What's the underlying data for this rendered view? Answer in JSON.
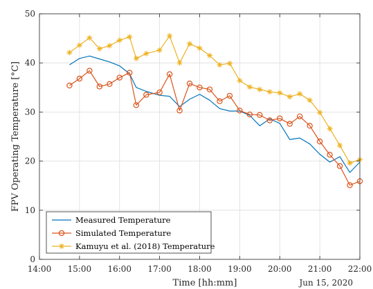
{
  "chart_data": {
    "type": "line",
    "xlabel": "Time [hh:mm]",
    "ylabel": "FPV Operating Temperature [°C]",
    "date_label": "Jun 15, 2020",
    "xlim": [
      "14:00",
      "22:00"
    ],
    "ylim": [
      0,
      50
    ],
    "x_ticks": [
      "14:00",
      "15:00",
      "16:00",
      "17:00",
      "18:00",
      "19:00",
      "20:00",
      "21:00",
      "22:00"
    ],
    "y_ticks": [
      0,
      10,
      20,
      30,
      40,
      50
    ],
    "grid": true,
    "legend_position": "bottom-left",
    "series": [
      {
        "name": "Measured Temperature",
        "color": "#0072BD",
        "marker": "none",
        "x": [
          "14:45",
          "15:00",
          "15:15",
          "15:30",
          "15:45",
          "16:00",
          "16:15",
          "16:25",
          "16:40",
          "17:00",
          "17:15",
          "17:30",
          "17:45",
          "18:00",
          "18:15",
          "18:30",
          "18:45",
          "19:00",
          "19:15",
          "19:30",
          "19:45",
          "20:00",
          "20:15",
          "20:30",
          "20:45",
          "21:00",
          "21:15",
          "21:30",
          "21:45",
          "22:00"
        ],
        "y": [
          39.6,
          40.9,
          41.4,
          40.8,
          40.2,
          39.4,
          37.8,
          35.0,
          34.2,
          33.4,
          33.2,
          31.1,
          32.6,
          33.6,
          32.4,
          30.7,
          30.2,
          30.2,
          29.3,
          27.2,
          28.6,
          27.7,
          24.4,
          24.7,
          23.5,
          21.4,
          19.8,
          20.9,
          17.7,
          19.8
        ]
      },
      {
        "name": "Simulated Temperature",
        "color": "#D95319",
        "marker": "circle",
        "x": [
          "14:45",
          "15:00",
          "15:15",
          "15:30",
          "15:45",
          "16:00",
          "16:15",
          "16:25",
          "16:40",
          "17:00",
          "17:15",
          "17:30",
          "17:45",
          "18:00",
          "18:15",
          "18:30",
          "18:45",
          "19:00",
          "19:15",
          "19:30",
          "19:45",
          "20:00",
          "20:15",
          "20:30",
          "20:45",
          "21:00",
          "21:15",
          "21:30",
          "21:45",
          "22:00"
        ],
        "y": [
          35.4,
          36.8,
          38.4,
          35.2,
          35.7,
          37.0,
          38.0,
          31.4,
          33.5,
          34.0,
          37.7,
          30.3,
          35.8,
          35.0,
          34.6,
          32.2,
          33.3,
          30.3,
          29.5,
          29.4,
          28.3,
          28.7,
          27.6,
          29.1,
          27.2,
          24.0,
          21.3,
          19.0,
          15.1,
          15.9
        ]
      },
      {
        "name": "Kamuyu et al. (2018) Temperature",
        "color": "#EDB120",
        "marker": "asterisk",
        "x": [
          "14:45",
          "15:00",
          "15:15",
          "15:30",
          "15:45",
          "16:00",
          "16:15",
          "16:25",
          "16:40",
          "17:00",
          "17:15",
          "17:30",
          "17:45",
          "18:00",
          "18:15",
          "18:30",
          "18:45",
          "19:00",
          "19:15",
          "19:30",
          "19:45",
          "20:00",
          "20:15",
          "20:30",
          "20:45",
          "21:00",
          "21:15",
          "21:30",
          "21:45",
          "22:00"
        ],
        "y": [
          42.1,
          43.6,
          45.1,
          42.9,
          43.5,
          44.6,
          45.3,
          40.9,
          41.9,
          42.6,
          45.5,
          40.0,
          43.9,
          43.0,
          41.5,
          39.6,
          39.9,
          36.4,
          35.1,
          34.6,
          34.1,
          33.9,
          33.1,
          33.7,
          32.4,
          29.9,
          26.6,
          23.2,
          19.6,
          20.3
        ]
      }
    ]
  }
}
